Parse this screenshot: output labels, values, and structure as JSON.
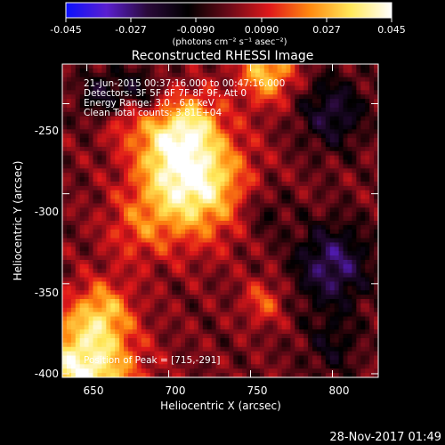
{
  "colorbar": {
    "ticks": [
      "-0.045",
      "-0.027",
      "-0.0090",
      "0.0090",
      "0.027",
      "0.045"
    ],
    "units_label": "(photons cm⁻² s⁻¹ asec⁻²)",
    "stops": [
      "#0a10ff",
      "#5a1fd0",
      "#2a0a3a",
      "#000000",
      "#6a0a18",
      "#e0181a",
      "#ff8a10",
      "#ffe85a",
      "#ffffff"
    ]
  },
  "info": {
    "line1": "21-Jun-2015 00:37:16.000 to 00:47:16.000",
    "line2": "Detectors: 3F 5F 6F 7F 8F 9F, Att 0",
    "line3": "Energy Range: 3.0 - 6.0 keV",
    "line4": "Clean     Total counts: 3.81E+04"
  },
  "peak_text": "Position of Peak = [715,-291]",
  "footer_date": "28-Nov-2017 01:49",
  "chart_data": {
    "type": "heatmap",
    "title": "Reconstructed RHESSI Image",
    "xlabel": "Heliocentric X (arcsec)",
    "ylabel": "Heliocentric Y (arcsec)",
    "xlim": [
      635,
      828
    ],
    "ylim": [
      -402,
      -228
    ],
    "x_ticks": [
      650,
      700,
      750,
      800
    ],
    "y_ticks": [
      -250,
      -300,
      -350,
      -400
    ],
    "x_tick_labels": [
      "650",
      "700",
      "750",
      "800"
    ],
    "y_tick_labels": [
      "-250",
      "-300",
      "-350",
      "-400"
    ],
    "colorbar_range": [
      -0.045,
      0.045
    ],
    "peak": {
      "x": 715,
      "y": -291
    },
    "sources": [
      {
        "x": 714,
        "y": -292,
        "amp": 0.045,
        "sigma": 22
      },
      {
        "x": 700,
        "y": -268,
        "amp": 0.02,
        "sigma": 14
      },
      {
        "x": 648,
        "y": -398,
        "amp": 0.042,
        "sigma": 22
      },
      {
        "x": 680,
        "y": -320,
        "amp": 0.012,
        "sigma": 14
      },
      {
        "x": 760,
        "y": -232,
        "amp": 0.03,
        "sigma": 12
      },
      {
        "x": 672,
        "y": -258,
        "amp": 0.012,
        "sigma": 10
      },
      {
        "x": 660,
        "y": -365,
        "amp": 0.02,
        "sigma": 12
      },
      {
        "x": 718,
        "y": -258,
        "amp": 0.014,
        "sigma": 10
      },
      {
        "x": 758,
        "y": -360,
        "amp": 0.016,
        "sigma": 9
      },
      {
        "x": 800,
        "y": -255,
        "amp": -0.02,
        "sigma": 14
      },
      {
        "x": 800,
        "y": -340,
        "amp": -0.026,
        "sigma": 16
      },
      {
        "x": 660,
        "y": -246,
        "amp": -0.018,
        "sigma": 10
      },
      {
        "x": 682,
        "y": -244,
        "amp": -0.016,
        "sigma": 9
      },
      {
        "x": 800,
        "y": -385,
        "amp": -0.012,
        "sigma": 12
      },
      {
        "x": 758,
        "y": -310,
        "amp": -0.01,
        "sigma": 10
      }
    ]
  }
}
